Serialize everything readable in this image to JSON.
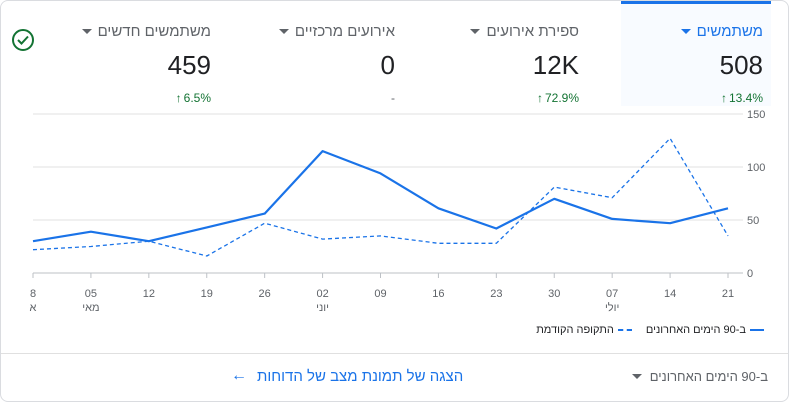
{
  "metrics": [
    {
      "title": "משתמשים",
      "value": "508",
      "change": "13.4%",
      "arrow": "↑",
      "active": true
    },
    {
      "title": "ספירת אירועים",
      "value": "12K",
      "change": "72.9%",
      "arrow": "↑"
    },
    {
      "title": "אירועים מרכזיים",
      "value": "0",
      "change": "-",
      "arrow": ""
    },
    {
      "title": "משתמשים חדשים",
      "value": "459",
      "change": "6.5%",
      "arrow": "↑"
    }
  ],
  "colors": {
    "accent": "#1a73e8",
    "positive": "#137333",
    "gridline": "#e0e0e0"
  },
  "check_icon": "check-circle-icon",
  "chart_data": {
    "type": "line",
    "x_ticks": [
      {
        "label": "8",
        "sub": "א"
      },
      {
        "label": "05",
        "sub": "מאי"
      },
      {
        "label": "12",
        "sub": ""
      },
      {
        "label": "19",
        "sub": ""
      },
      {
        "label": "26",
        "sub": ""
      },
      {
        "label": "02",
        "sub": "יוני"
      },
      {
        "label": "09",
        "sub": ""
      },
      {
        "label": "16",
        "sub": ""
      },
      {
        "label": "23",
        "sub": ""
      },
      {
        "label": "30",
        "sub": ""
      },
      {
        "label": "07",
        "sub": "יולי"
      },
      {
        "label": "14",
        "sub": ""
      },
      {
        "label": "21",
        "sub": ""
      }
    ],
    "y_ticks": [
      0,
      50,
      100,
      150
    ],
    "ylim": [
      0,
      150
    ],
    "series": [
      {
        "name": "ב-90 הימים האחרונים",
        "style": "solid",
        "values": [
          30,
          39,
          30,
          43,
          56,
          115,
          94,
          61,
          42,
          70,
          51,
          47,
          61
        ]
      },
      {
        "name": "התקופה הקודמת",
        "style": "dashed",
        "values": [
          22,
          25,
          30,
          16,
          47,
          32,
          35,
          28,
          28,
          81,
          71,
          127,
          35
        ]
      }
    ],
    "grid": true
  },
  "footer": {
    "range_label": "ב-90 הימים האחרונים",
    "link_label": "הצגה של תמונת מצב של הדוחות"
  }
}
